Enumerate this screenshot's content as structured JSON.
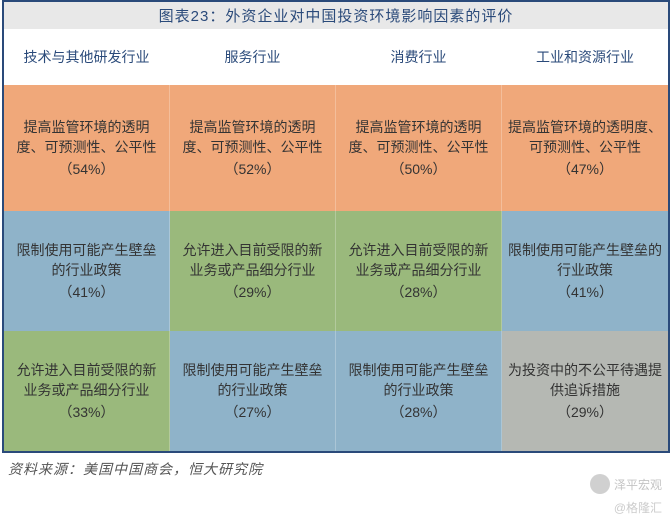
{
  "title": "图表23：外资企业对中国投资环境影响因素的评价",
  "headers": [
    "技术与其他研发行业",
    "服务行业",
    "消费行业",
    "工业和资源行业"
  ],
  "colors": {
    "orange": "#f0a87a",
    "green": "#9ab97c",
    "blue": "#8fb3c9",
    "gray": "#b5b8b3",
    "title_bg": "#e8e8e8",
    "border": "#2a4a7a"
  },
  "rows": [
    [
      {
        "text": "提高监管环境的透明度、可预测性、公平性",
        "pct": "（54%）",
        "color": "orange"
      },
      {
        "text": "提高监管环境的透明度、可预测性、公平性",
        "pct": "（52%）",
        "color": "orange"
      },
      {
        "text": "提高监管环境的透明度、可预测性、公平性",
        "pct": "（50%）",
        "color": "orange"
      },
      {
        "text": "提高监管环境的透明度、可预测性、公平性",
        "pct": "（47%）",
        "color": "orange"
      }
    ],
    [
      {
        "text": "限制使用可能产生壁垒的行业政策",
        "pct": "（41%）",
        "color": "blue"
      },
      {
        "text": "允许进入目前受限的新业务或产品细分行业",
        "pct": "（29%）",
        "color": "green"
      },
      {
        "text": "允许进入目前受限的新业务或产品细分行业",
        "pct": "（28%）",
        "color": "green"
      },
      {
        "text": "限制使用可能产生壁垒的行业政策",
        "pct": "（41%）",
        "color": "blue"
      }
    ],
    [
      {
        "text": "允许进入目前受限的新业务或产品细分行业",
        "pct": "（33%）",
        "color": "green"
      },
      {
        "text": "限制使用可能产生壁垒的行业政策",
        "pct": "（27%）",
        "color": "blue"
      },
      {
        "text": "限制使用可能产生壁垒的行业政策",
        "pct": "（28%）",
        "color": "blue"
      },
      {
        "text": "为投资中的不公平待遇提供追诉措施",
        "pct": "（29%）",
        "color": "gray"
      }
    ]
  ],
  "source": "资料来源：美国中国商会，恒大研究院",
  "watermark1": "泽平宏观",
  "watermark2": "@格隆汇"
}
